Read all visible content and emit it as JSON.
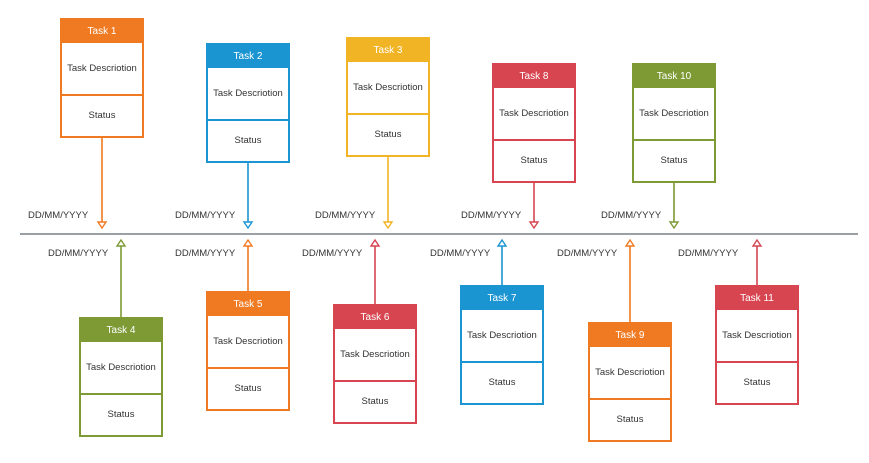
{
  "tasks": [
    {
      "id": "task-1",
      "title": "Task 1",
      "description": "Task Descriotion",
      "status": "Status",
      "date": "DD/MM/YYYY",
      "color": "#f07a22",
      "side": "top"
    },
    {
      "id": "task-2",
      "title": "Task 2",
      "description": "Task Descriotion",
      "status": "Status",
      "date": "DD/MM/YYYY",
      "color": "#1b95d2",
      "side": "top"
    },
    {
      "id": "task-3",
      "title": "Task 3",
      "description": "Task Descriotion",
      "status": "Status",
      "date": "DD/MM/YYYY",
      "color": "#f1b425",
      "side": "top"
    },
    {
      "id": "task-8",
      "title": "Task 8",
      "description": "Task Descriotion",
      "status": "Status",
      "date": "DD/MM/YYYY",
      "color": "#d64550",
      "side": "top"
    },
    {
      "id": "task-10",
      "title": "Task 10",
      "description": "Task Descriotion",
      "status": "Status",
      "date": "DD/MM/YYYY",
      "color": "#7d9a35",
      "side": "top"
    },
    {
      "id": "task-4",
      "title": "Task 4",
      "description": "Task Descriotion",
      "status": "Status",
      "date": "DD/MM/YYYY",
      "color": "#7d9a35",
      "side": "bottom"
    },
    {
      "id": "task-5",
      "title": "Task 5",
      "description": "Task Descriotion",
      "status": "Status",
      "date": "DD/MM/YYYY",
      "color": "#f07a22",
      "side": "bottom"
    },
    {
      "id": "task-6",
      "title": "Task 6",
      "description": "Task Descriotion",
      "status": "Status",
      "date": "DD/MM/YYYY",
      "color": "#d64550",
      "side": "bottom"
    },
    {
      "id": "task-7",
      "title": "Task 7",
      "description": "Task Descriotion",
      "status": "Status",
      "date": "DD/MM/YYYY",
      "color": "#1b95d2",
      "side": "bottom"
    },
    {
      "id": "task-9",
      "title": "Task 9",
      "description": "Task Descriotion",
      "status": "Status",
      "date": "DD/MM/YYYY",
      "color": "#f07a22",
      "side": "bottom"
    },
    {
      "id": "task-11",
      "title": "Task 11",
      "description": "Task Descriotion",
      "status": "Status",
      "date": "DD/MM/YYYY",
      "color": "#d64550",
      "side": "bottom"
    }
  ]
}
